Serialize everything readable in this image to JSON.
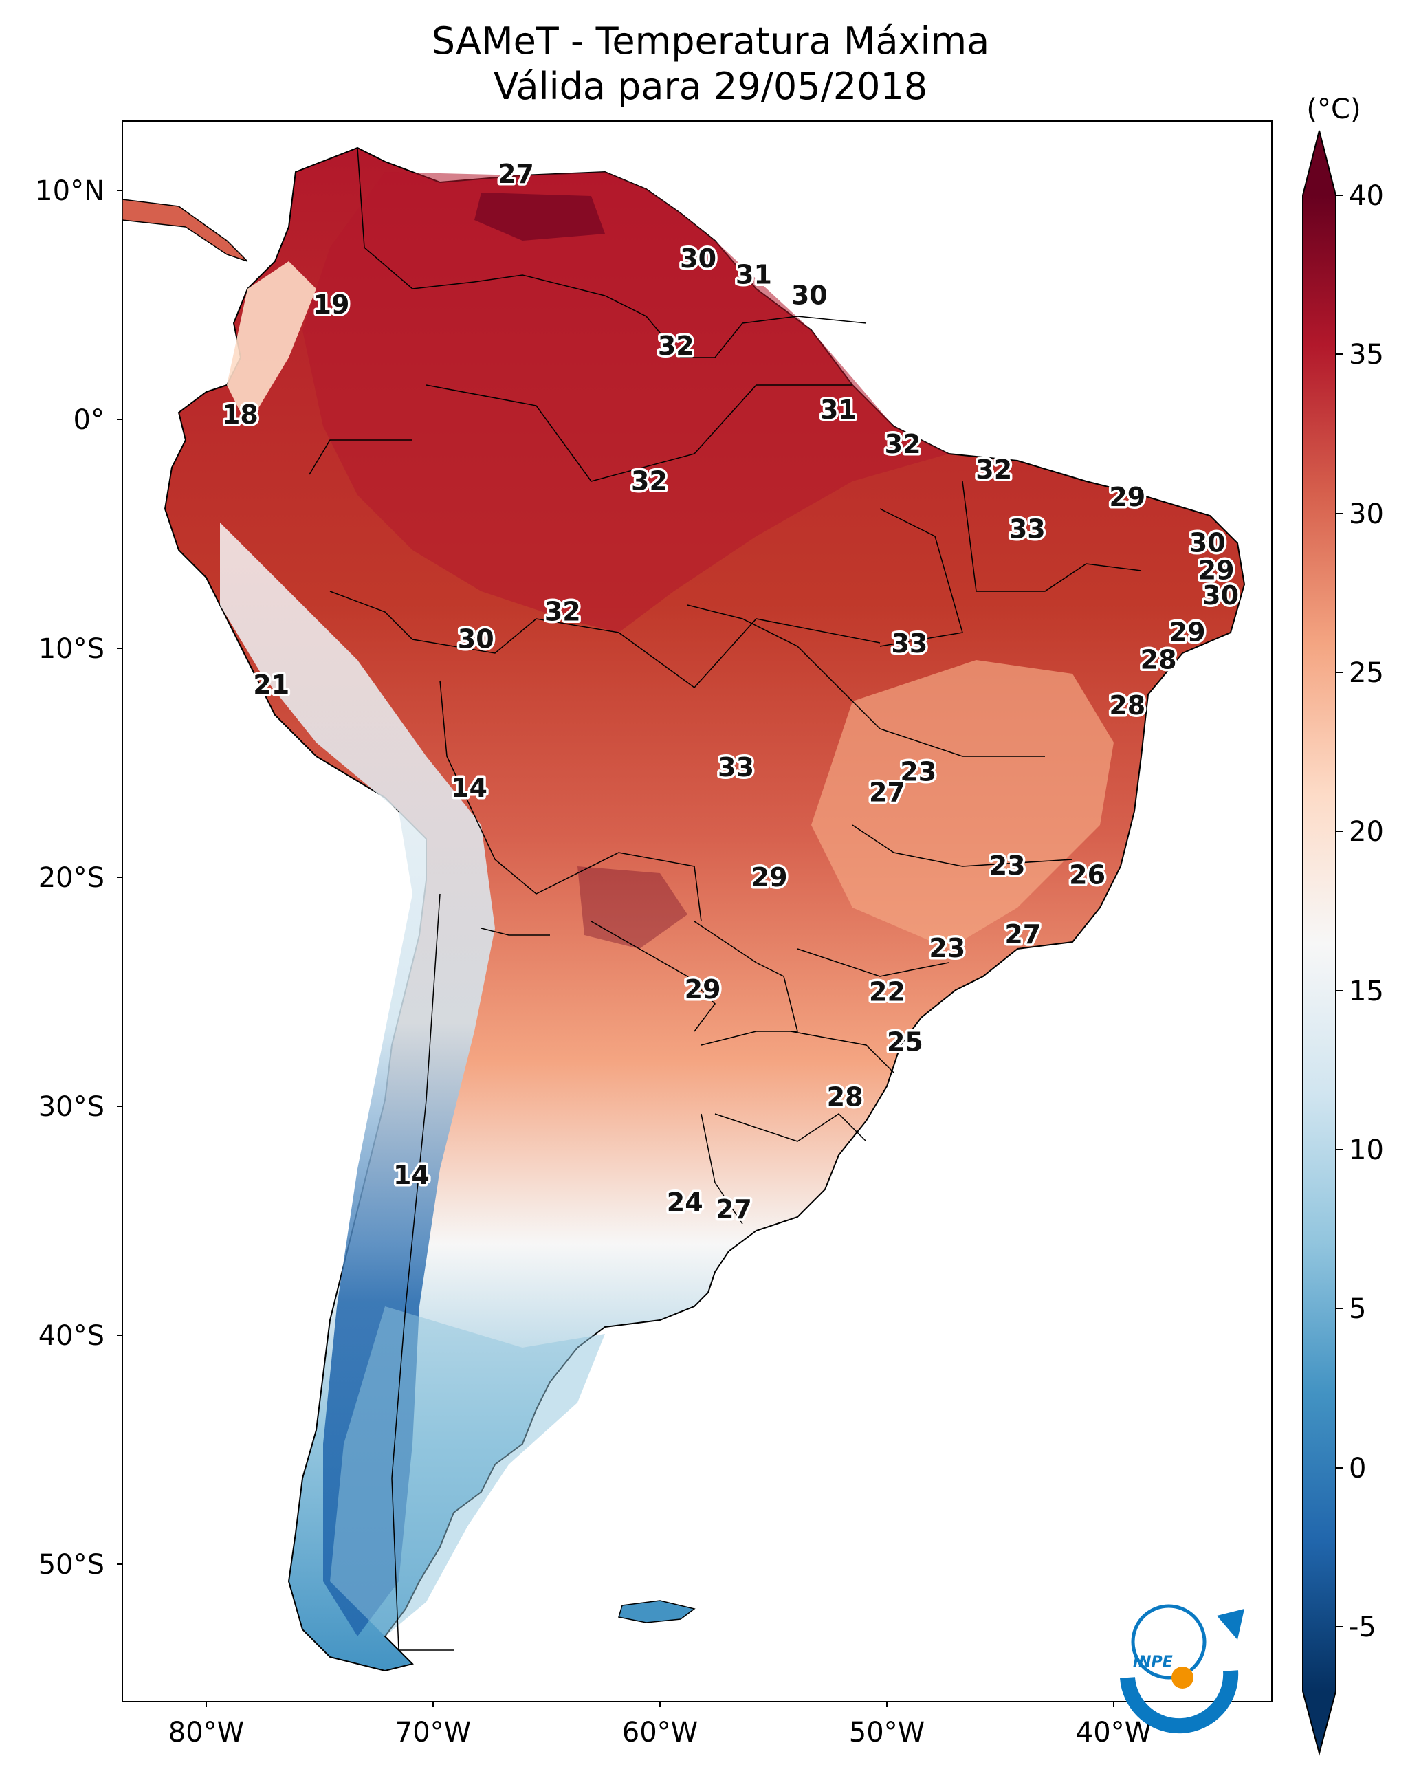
{
  "title": {
    "line1": "SAMeT - Temperatura Máxima",
    "line2": "Válida para 29/05/2018"
  },
  "map": {
    "region": "South America",
    "lat_ticks": [
      "10°N",
      "0°",
      "10°S",
      "20°S",
      "30°S",
      "40°S",
      "50°S"
    ],
    "lon_ticks": [
      "80°W",
      "70°W",
      "60°W",
      "50°W",
      "40°W"
    ],
    "station_values": [
      {
        "label": "27",
        "lon": -66.0,
        "lat": 10.3
      },
      {
        "label": "30",
        "lon": -57.8,
        "lat": 6.6
      },
      {
        "label": "31",
        "lon": -55.3,
        "lat": 5.9
      },
      {
        "label": "30",
        "lon": -52.8,
        "lat": 5.0
      },
      {
        "label": "19",
        "lon": -74.3,
        "lat": 4.6
      },
      {
        "label": "32",
        "lon": -58.8,
        "lat": 2.8
      },
      {
        "label": "18",
        "lon": -78.4,
        "lat": -0.2
      },
      {
        "label": "31",
        "lon": -51.5,
        "lat": 0.0
      },
      {
        "label": "32",
        "lon": -48.6,
        "lat": -1.5
      },
      {
        "label": "32",
        "lon": -44.5,
        "lat": -2.6
      },
      {
        "label": "32",
        "lon": -60.0,
        "lat": -3.1
      },
      {
        "label": "29",
        "lon": -38.5,
        "lat": -3.8
      },
      {
        "label": "33",
        "lon": -43.0,
        "lat": -5.2
      },
      {
        "label": "30",
        "lon": -34.9,
        "lat": -5.8
      },
      {
        "label": "29",
        "lon": -34.5,
        "lat": -7.0
      },
      {
        "label": "30",
        "lon": -34.3,
        "lat": -8.1
      },
      {
        "label": "32",
        "lon": -63.9,
        "lat": -8.8
      },
      {
        "label": "30",
        "lon": -67.8,
        "lat": -10.0
      },
      {
        "label": "33",
        "lon": -48.3,
        "lat": -10.2
      },
      {
        "label": "29",
        "lon": -35.8,
        "lat": -9.7
      },
      {
        "label": "28",
        "lon": -37.1,
        "lat": -10.9
      },
      {
        "label": "28",
        "lon": -38.5,
        "lat": -12.9
      },
      {
        "label": "21",
        "lon": -77.0,
        "lat": -12.0
      },
      {
        "label": "33",
        "lon": -56.1,
        "lat": -15.6
      },
      {
        "label": "23",
        "lon": -47.9,
        "lat": -15.8
      },
      {
        "label": "27",
        "lon": -49.3,
        "lat": -16.7
      },
      {
        "label": "14",
        "lon": -68.1,
        "lat": -16.5
      },
      {
        "label": "29",
        "lon": -54.6,
        "lat": -20.4
      },
      {
        "label": "23",
        "lon": -43.9,
        "lat": -19.9
      },
      {
        "label": "26",
        "lon": -40.3,
        "lat": -20.3
      },
      {
        "label": "27",
        "lon": -43.2,
        "lat": -22.9
      },
      {
        "label": "23",
        "lon": -46.6,
        "lat": -23.5
      },
      {
        "label": "22",
        "lon": -49.3,
        "lat": -25.4
      },
      {
        "label": "29",
        "lon": -57.6,
        "lat": -25.3
      },
      {
        "label": "25",
        "lon": -48.5,
        "lat": -27.6
      },
      {
        "label": "28",
        "lon": -51.2,
        "lat": -30.0
      },
      {
        "label": "14",
        "lon": -70.7,
        "lat": -33.4
      },
      {
        "label": "24",
        "lon": -58.4,
        "lat": -34.6
      },
      {
        "label": "27",
        "lon": -56.2,
        "lat": -34.9
      }
    ]
  },
  "colorbar": {
    "unit": "(°C)",
    "ticks": [
      "40",
      "35",
      "30",
      "25",
      "20",
      "15",
      "10",
      "5",
      "0",
      "-5"
    ],
    "colors": {
      "dark_red": "#67001f",
      "red": "#b2182b",
      "light_red": "#d6604d",
      "salmon": "#f4a582",
      "pink": "#fddbc7",
      "white": "#f7f7f7",
      "light_blue": "#d1e5f0",
      "sky": "#92c5de",
      "blue": "#4393c3",
      "mid_blue": "#2166ac",
      "navy": "#053061"
    }
  },
  "logo": {
    "text": "INPE",
    "colors": {
      "blue": "#0a79c2",
      "orange": "#f39200"
    }
  }
}
